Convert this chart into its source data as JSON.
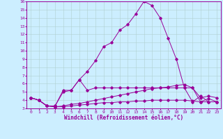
{
  "x": [
    0,
    1,
    2,
    3,
    4,
    5,
    6,
    7,
    8,
    9,
    10,
    11,
    12,
    13,
    14,
    15,
    16,
    17,
    18,
    19,
    20,
    21,
    22,
    23
  ],
  "line1": [
    4.3,
    4.0,
    3.3,
    3.3,
    5.2,
    5.2,
    6.5,
    5.2,
    5.5,
    5.5,
    5.5,
    5.5,
    5.5,
    5.5,
    5.5,
    5.5,
    5.5,
    5.5,
    5.5,
    5.5,
    5.5,
    4.3,
    4.5,
    4.3
  ],
  "line2": [
    4.3,
    4.0,
    3.3,
    3.3,
    5.0,
    5.2,
    6.5,
    7.5,
    8.8,
    10.5,
    11.0,
    12.5,
    13.2,
    14.5,
    16.0,
    15.5,
    14.0,
    11.5,
    9.0,
    5.5,
    3.8,
    4.5,
    3.8,
    3.8
  ],
  "line3": [
    4.3,
    4.0,
    3.3,
    3.2,
    3.3,
    3.5,
    3.6,
    3.8,
    4.0,
    4.2,
    4.4,
    4.6,
    4.8,
    5.0,
    5.2,
    5.4,
    5.5,
    5.6,
    5.8,
    5.9,
    5.5,
    3.8,
    4.2,
    3.8
  ],
  "line4": [
    4.3,
    4.0,
    3.3,
    3.2,
    3.2,
    3.3,
    3.4,
    3.5,
    3.6,
    3.7,
    3.7,
    3.8,
    3.8,
    3.9,
    3.9,
    4.0,
    4.0,
    4.0,
    4.0,
    4.0,
    3.9,
    3.8,
    3.8,
    3.8
  ],
  "line_color": "#990099",
  "bg_color": "#cceeff",
  "grid_color": "#b0d0d0",
  "xlabel": "Windchill (Refroidissement éolien,°C)",
  "ylim": [
    3,
    16
  ],
  "xlim": [
    0,
    23
  ],
  "yticks": [
    3,
    4,
    5,
    6,
    7,
    8,
    9,
    10,
    11,
    12,
    13,
    14,
    15,
    16
  ],
  "xticks": [
    0,
    1,
    2,
    3,
    4,
    5,
    6,
    7,
    8,
    9,
    10,
    11,
    12,
    13,
    14,
    15,
    16,
    17,
    18,
    19,
    20,
    21,
    22,
    23
  ]
}
